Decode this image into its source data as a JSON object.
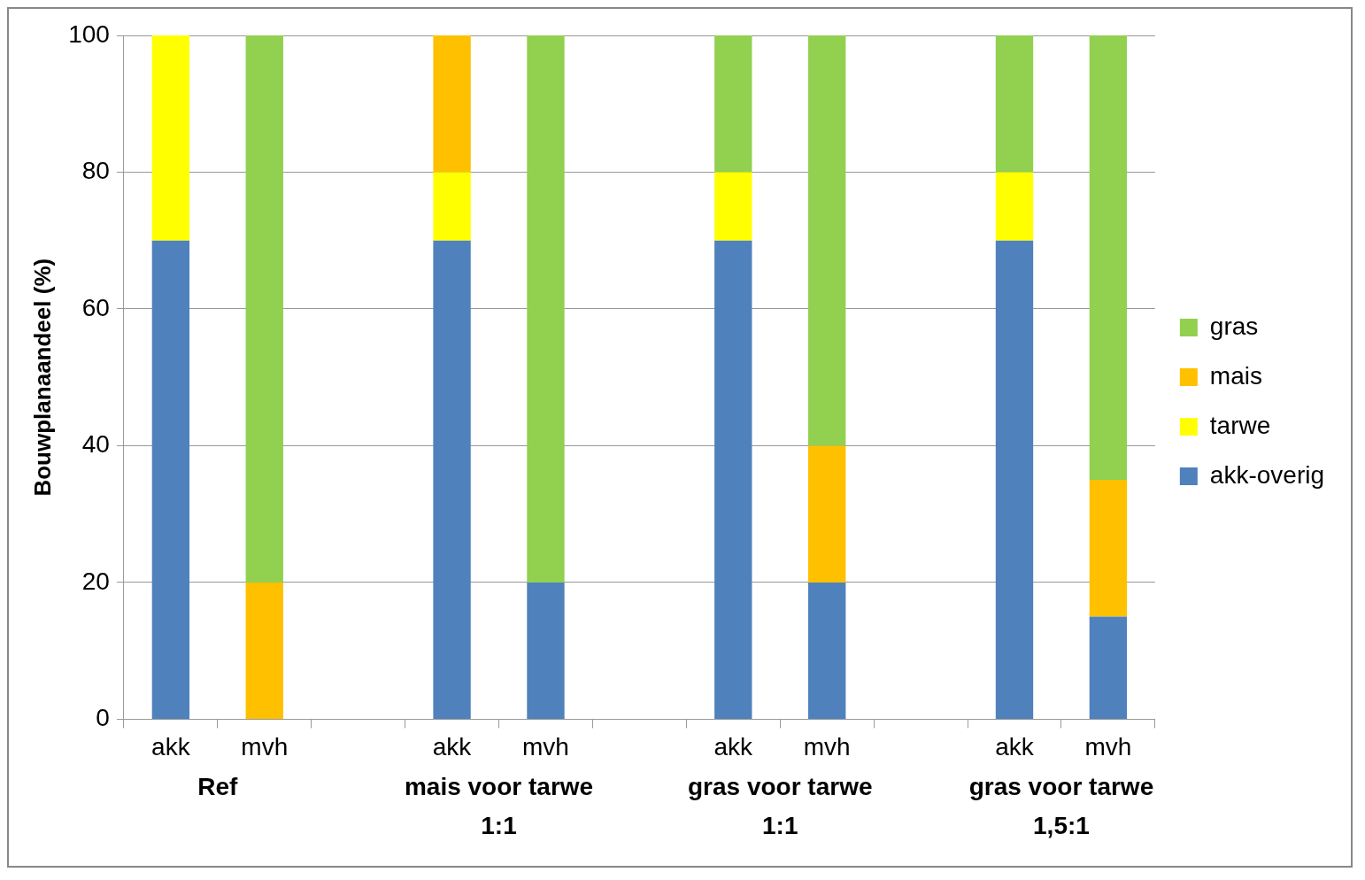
{
  "chart_data": {
    "type": "bar",
    "stacked": true,
    "ylabel": "Bouwplanaandeel (%)",
    "categories": [
      "akk",
      "mvh",
      null,
      "akk",
      "mvh",
      null,
      "akk",
      "mvh",
      null,
      "akk",
      "mvh"
    ],
    "series": [
      {
        "name": "akk-overig",
        "color": "#4f81bd",
        "values": [
          70,
          0,
          null,
          70,
          20,
          null,
          70,
          20,
          null,
          70,
          15
        ]
      },
      {
        "name": "tarwe",
        "color": "#ffff00",
        "values": [
          30,
          0,
          null,
          10,
          0,
          null,
          10,
          0,
          null,
          10,
          0
        ]
      },
      {
        "name": "mais",
        "color": "#ffc000",
        "values": [
          0,
          20,
          null,
          20,
          0,
          null,
          0,
          20,
          null,
          0,
          20
        ]
      },
      {
        "name": "gras",
        "color": "#92d050",
        "values": [
          0,
          80,
          null,
          0,
          80,
          null,
          20,
          60,
          null,
          20,
          65
        ]
      }
    ],
    "ylim": [
      0,
      100
    ],
    "yticks": [
      0,
      20,
      40,
      60,
      80,
      100
    ],
    "grid": "y",
    "legend": "right",
    "annotations": [
      "Ref",
      "mais voor tarwe 1:1",
      "gras voor tarwe 1:1",
      "gras voor tarwe 1,5:1"
    ]
  }
}
